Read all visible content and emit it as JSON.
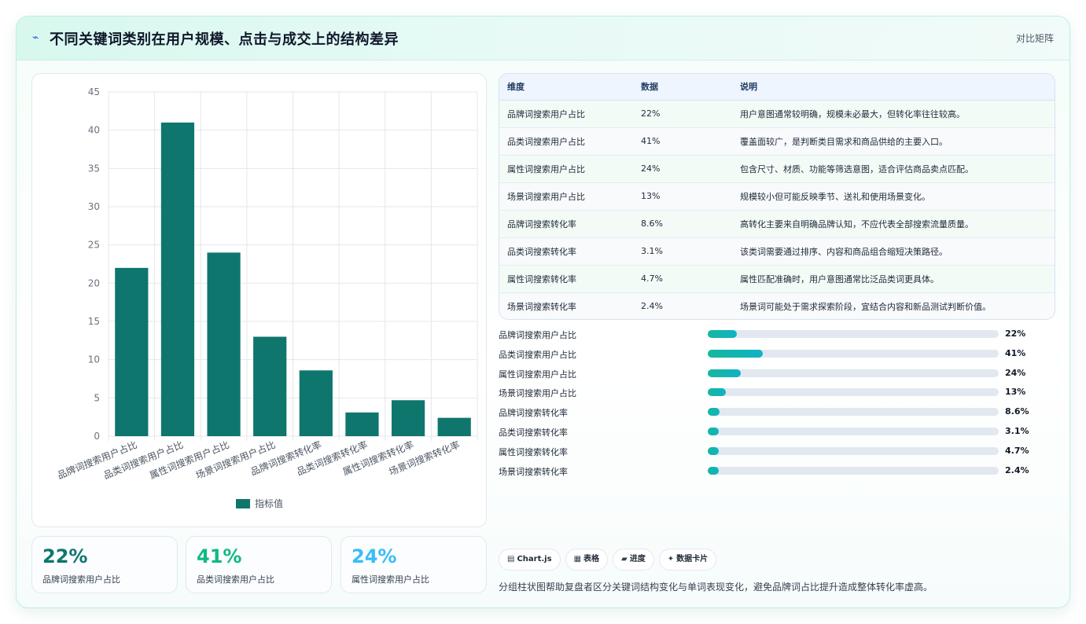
{
  "header": {
    "title": "不同关键词类别在用户规模、点击与成交上的结构差异",
    "mode_label": "对比矩阵"
  },
  "chart_data": {
    "type": "bar",
    "categories": [
      "品牌词搜索用户占比",
      "品类词搜索用户占比",
      "属性词搜索用户占比",
      "场景词搜索用户占比",
      "品牌词搜索转化率",
      "品类词搜索转化率",
      "属性词搜索转化率",
      "场景词搜索转化率"
    ],
    "series": [
      {
        "name": "指标值",
        "values": [
          22,
          41,
          24,
          13,
          8.6,
          3.1,
          4.7,
          2.4
        ]
      }
    ],
    "ylim": [
      0,
      45
    ],
    "yticks": [
      0,
      5,
      10,
      15,
      20,
      25,
      30,
      35,
      40,
      45
    ],
    "grid": true,
    "legend_position": "bottom",
    "color": "#0f766e"
  },
  "kpis": [
    {
      "value": "22%",
      "label": "品牌词搜索用户占比",
      "color": "#0f766e"
    },
    {
      "value": "41%",
      "label": "品类词搜索用户占比",
      "color": "#10b981"
    },
    {
      "value": "24%",
      "label": "属性词搜索用户占比",
      "color": "#38bdf8"
    }
  ],
  "table": {
    "headers": [
      "维度",
      "数据",
      "说明"
    ],
    "rows": [
      [
        "品牌词搜索用户占比",
        "22%",
        "用户意图通常较明确，规模未必最大，但转化率往往较高。"
      ],
      [
        "品类词搜索用户占比",
        "41%",
        "覆盖面较广，是判断类目需求和商品供给的主要入口。"
      ],
      [
        "属性词搜索用户占比",
        "24%",
        "包含尺寸、材质、功能等筛选意图，适合评估商品卖点匹配。"
      ],
      [
        "场景词搜索用户占比",
        "13%",
        "规模较小但可能反映季节、送礼和使用场景变化。"
      ],
      [
        "品牌词搜索转化率",
        "8.6%",
        "高转化主要来自明确品牌认知，不应代表全部搜索流量质量。"
      ],
      [
        "品类词搜索转化率",
        "3.1%",
        "该类词需要通过排序、内容和商品组合缩短决策路径。"
      ],
      [
        "属性词搜索转化率",
        "4.7%",
        "属性匹配准确时，用户意图通常比泛品类词更具体。"
      ],
      [
        "场景词搜索转化率",
        "2.4%",
        "场景词可能处于需求探索阶段，宜结合内容和新品测试判断价值。"
      ]
    ]
  },
  "progress": [
    {
      "label": "品牌词搜索用户占比",
      "value_text": "22%",
      "percent": 10
    },
    {
      "label": "品类词搜索用户占比",
      "value_text": "41%",
      "percent": 19
    },
    {
      "label": "属性词搜索用户占比",
      "value_text": "24%",
      "percent": 11.3
    },
    {
      "label": "场景词搜索用户占比",
      "value_text": "13%",
      "percent": 6.2
    },
    {
      "label": "品牌词搜索转化率",
      "value_text": "8.6%",
      "percent": 4
    },
    {
      "label": "品类词搜索转化率",
      "value_text": "3.1%",
      "percent": 3.8
    },
    {
      "label": "属性词搜索转化率",
      "value_text": "4.7%",
      "percent": 3.8
    },
    {
      "label": "场景词搜索转化率",
      "value_text": "2.4%",
      "percent": 3.8
    }
  ],
  "chips": [
    {
      "icon": "chart-icon",
      "glyph": "▤",
      "label": "Chart.js"
    },
    {
      "icon": "table-icon",
      "glyph": "▦",
      "label": "表格"
    },
    {
      "icon": "progress-icon",
      "glyph": "▰",
      "label": "进度"
    },
    {
      "icon": "sparkle-icon",
      "glyph": "✦",
      "label": "数据卡片"
    }
  ],
  "footer_note": "分组柱状图帮助复盘者区分关键词结构变化与单词表现变化，避免品牌词占比提升造成整体转化率虚高。"
}
